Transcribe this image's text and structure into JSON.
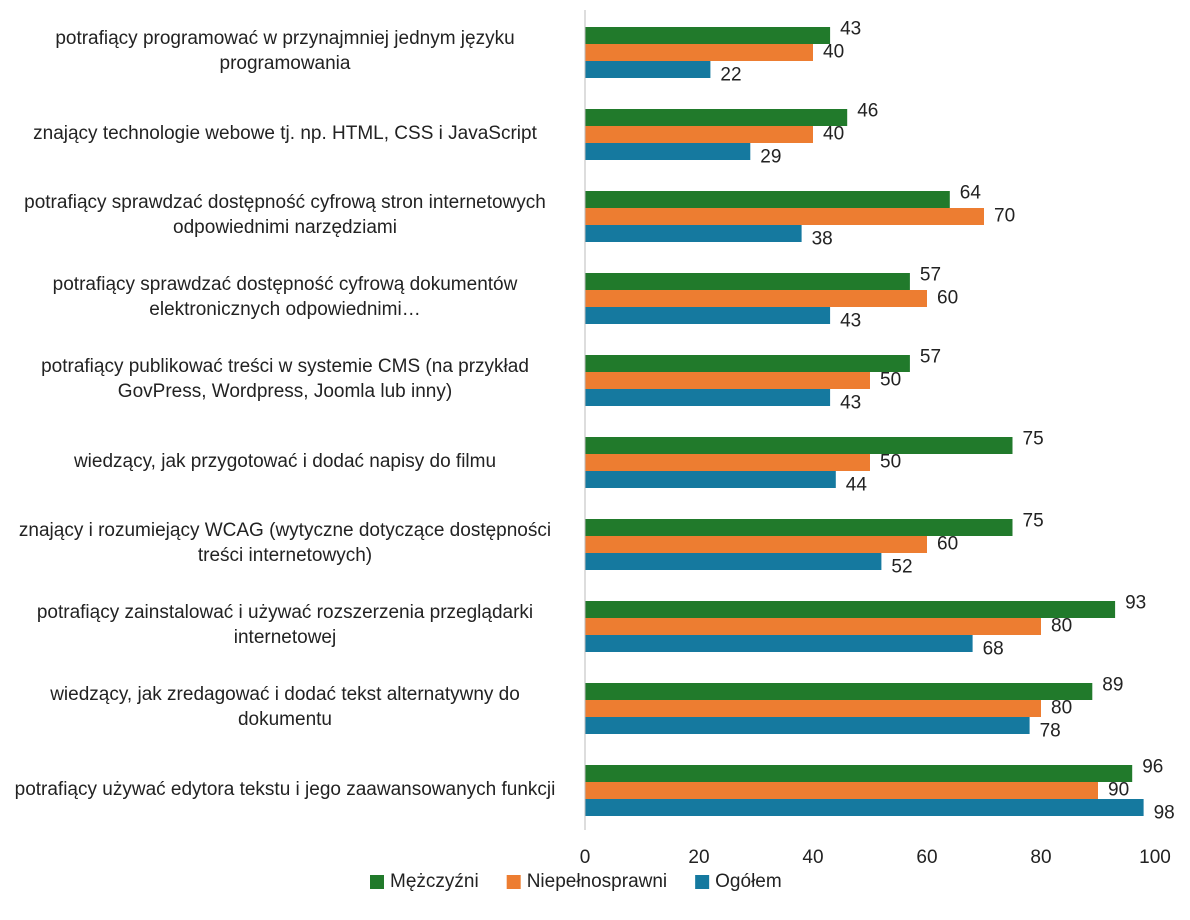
{
  "chart_data": {
    "type": "bar",
    "orientation": "horizontal",
    "categories": [
      "potrafiący programować w przynajmniej jednym języku programowania",
      "znający technologie webowe tj. np. HTML, CSS i JavaScript",
      "potrafiący sprawdzać dostępność cyfrową stron internetowych odpowiednimi narzędziami",
      "potrafiący sprawdzać dostępność cyfrową dokumentów elektronicznych odpowiednimi…",
      "potrafiący publikować treści w systemie CMS (na przykład GovPress, Wordpress, Joomla lub inny)",
      "wiedzący, jak przygotować i dodać napisy do filmu",
      "znający i rozumiejący WCAG (wytyczne dotyczące dostępności treści internetowych)",
      "potrafiący zainstalować i używać rozszerzenia przeglądarki internetowej",
      "wiedzący, jak zredagować i dodać tekst alternatywny do dokumentu",
      "potrafiący używać edytora tekstu i jego zaawansowanych funkcji"
    ],
    "series": [
      {
        "name": "Mężczyźni",
        "color": "#217a2b",
        "values": [
          43,
          46,
          64,
          57,
          57,
          75,
          75,
          93,
          89,
          96
        ]
      },
      {
        "name": "Niepełnosprawni",
        "color": "#ed7d31",
        "values": [
          40,
          40,
          70,
          60,
          50,
          50,
          60,
          80,
          80,
          90
        ]
      },
      {
        "name": "Ogółem",
        "color": "#15799f",
        "values": [
          22,
          29,
          38,
          43,
          43,
          44,
          52,
          68,
          78,
          98
        ]
      }
    ],
    "xlim": [
      0,
      100
    ],
    "xticks": [
      0,
      20,
      40,
      60,
      80,
      100
    ],
    "legend": "bottom"
  }
}
